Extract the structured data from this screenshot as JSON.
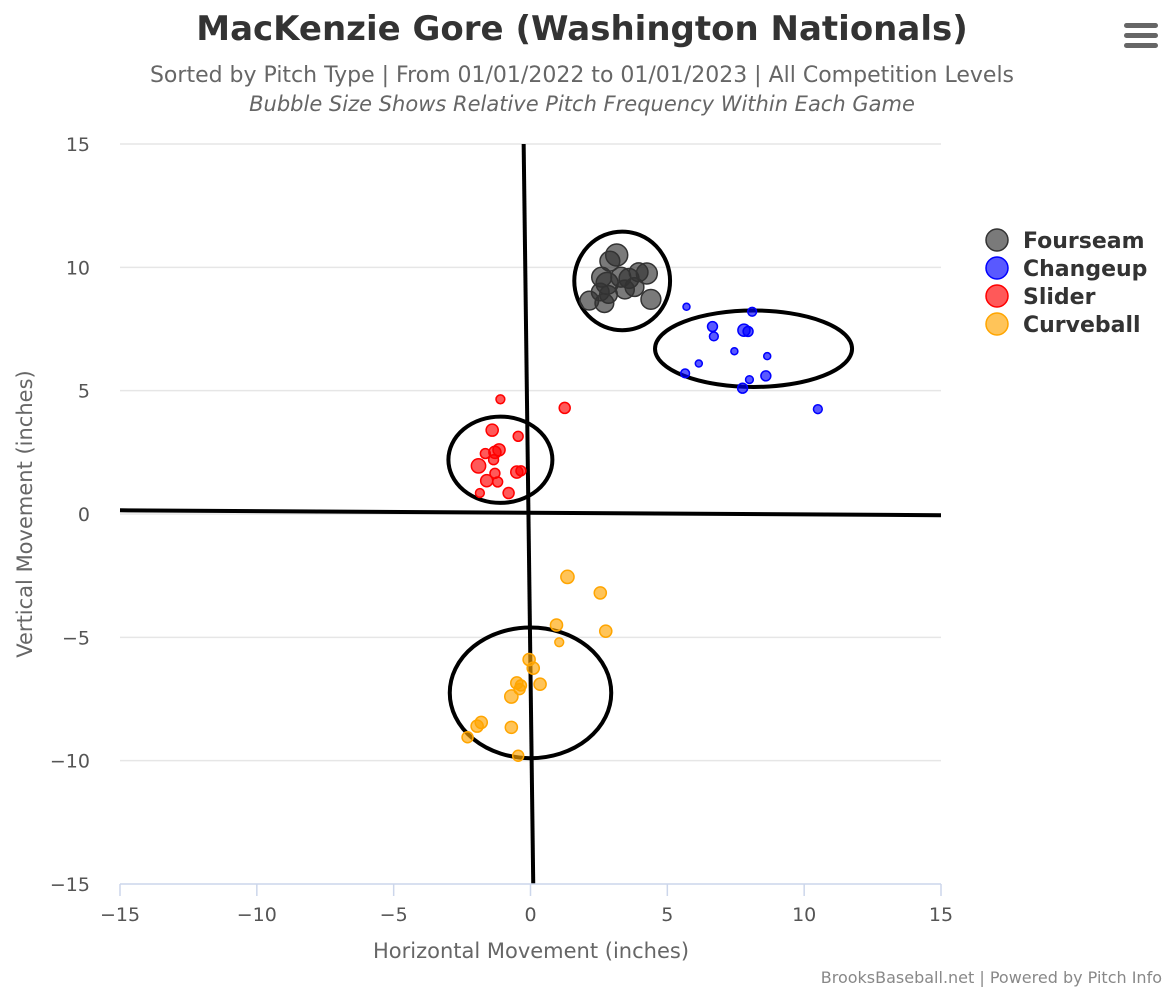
{
  "chart_data": {
    "type": "scatter",
    "title": "MacKenzie Gore (Washington Nationals)",
    "subtitle": "Sorted by Pitch Type | From 01/01/2022 to 01/01/2023 | All Competition Levels",
    "subtitle2": "Bubble Size Shows Relative Pitch Frequency Within Each Game",
    "xlabel": "Horizontal Movement (inches)",
    "ylabel": "Vertical Movement (inches)",
    "xlim": [
      -15,
      15
    ],
    "ylim": [
      -15,
      15
    ],
    "x_ticks": [
      "−15",
      "−10",
      "−5",
      "0",
      "5",
      "10",
      "15"
    ],
    "y_ticks": [
      "15",
      "10",
      "5",
      "0",
      "−5",
      "−10",
      "−15"
    ],
    "grid": true,
    "legend_position": "right",
    "credits": "BrooksBaseball.net | Powered by Pitch Info",
    "series": [
      {
        "name": "Fourseam",
        "color": "#333333",
        "ellipse": {
          "cx": 3.35,
          "cy": 9.45,
          "rx": 1.75,
          "ry": 2.0
        },
        "points": [
          [
            3.15,
            10.5,
            1.0
          ],
          [
            2.9,
            10.25,
            0.9
          ],
          [
            2.6,
            9.6,
            0.9
          ],
          [
            2.8,
            9.35,
            1.0
          ],
          [
            3.3,
            9.6,
            0.9
          ],
          [
            3.6,
            9.55,
            0.9
          ],
          [
            3.95,
            9.8,
            0.85
          ],
          [
            4.25,
            9.75,
            0.95
          ],
          [
            3.8,
            9.2,
            0.85
          ],
          [
            3.45,
            9.1,
            0.85
          ],
          [
            2.55,
            9.0,
            0.8
          ],
          [
            2.85,
            8.9,
            0.8
          ],
          [
            4.4,
            8.7,
            0.9
          ],
          [
            2.15,
            8.65,
            0.85
          ],
          [
            2.7,
            8.55,
            0.85
          ]
        ]
      },
      {
        "name": "Changeup",
        "color": "#0000ff",
        "ellipse": {
          "cx": 8.15,
          "cy": 6.7,
          "rx": 3.6,
          "ry": 1.55
        },
        "points": [
          [
            5.7,
            8.4,
            0.3
          ],
          [
            8.1,
            8.2,
            0.4
          ],
          [
            6.65,
            7.6,
            0.45
          ],
          [
            7.8,
            7.45,
            0.55
          ],
          [
            6.7,
            7.2,
            0.4
          ],
          [
            7.95,
            7.4,
            0.45
          ],
          [
            7.45,
            6.6,
            0.25
          ],
          [
            8.65,
            6.4,
            0.25
          ],
          [
            6.15,
            6.1,
            0.25
          ],
          [
            5.65,
            5.7,
            0.4
          ],
          [
            8.6,
            5.6,
            0.45
          ],
          [
            8.0,
            5.45,
            0.35
          ],
          [
            7.75,
            5.1,
            0.45
          ],
          [
            10.5,
            4.25,
            0.4
          ]
        ]
      },
      {
        "name": "Slider",
        "color": "#ff0000",
        "ellipse": {
          "cx": -1.1,
          "cy": 2.2,
          "rx": 1.9,
          "ry": 1.75
        },
        "points": [
          [
            -1.1,
            4.65,
            0.4
          ],
          [
            1.25,
            4.3,
            0.5
          ],
          [
            -1.4,
            3.4,
            0.55
          ],
          [
            -0.45,
            3.15,
            0.45
          ],
          [
            -1.15,
            2.6,
            0.55
          ],
          [
            -1.3,
            2.5,
            0.55
          ],
          [
            -1.65,
            2.45,
            0.45
          ],
          [
            -1.35,
            2.2,
            0.45
          ],
          [
            -1.9,
            1.95,
            0.65
          ],
          [
            -0.5,
            1.7,
            0.55
          ],
          [
            -0.35,
            1.75,
            0.45
          ],
          [
            -1.3,
            1.65,
            0.45
          ],
          [
            -1.6,
            1.35,
            0.55
          ],
          [
            -1.2,
            1.3,
            0.45
          ],
          [
            -0.8,
            0.85,
            0.5
          ],
          [
            -1.85,
            0.85,
            0.4
          ]
        ]
      },
      {
        "name": "Curveball",
        "color": "#ffa500",
        "ellipse": {
          "cx": 0.0,
          "cy": -7.25,
          "rx": 2.95,
          "ry": 2.65
        },
        "points": [
          [
            1.35,
            -2.55,
            0.6
          ],
          [
            2.55,
            -3.2,
            0.55
          ],
          [
            0.95,
            -4.5,
            0.55
          ],
          [
            2.75,
            -4.75,
            0.55
          ],
          [
            1.05,
            -5.2,
            0.4
          ],
          [
            -0.05,
            -5.9,
            0.55
          ],
          [
            0.1,
            -6.25,
            0.55
          ],
          [
            -0.5,
            -6.85,
            0.55
          ],
          [
            -0.35,
            -6.95,
            0.5
          ],
          [
            0.35,
            -6.9,
            0.55
          ],
          [
            -0.4,
            -7.1,
            0.5
          ],
          [
            -0.7,
            -7.4,
            0.6
          ],
          [
            -1.8,
            -8.45,
            0.55
          ],
          [
            -1.95,
            -8.6,
            0.55
          ],
          [
            -0.7,
            -8.65,
            0.55
          ],
          [
            -2.3,
            -9.05,
            0.5
          ],
          [
            -0.45,
            -9.8,
            0.5
          ]
        ]
      }
    ],
    "reference_lines": [
      {
        "x1": -15,
        "y1": 0.15,
        "x2": 15,
        "y2": -0.05
      },
      {
        "x1": -0.25,
        "y1": 15,
        "x2": 0.1,
        "y2": -15
      }
    ]
  }
}
